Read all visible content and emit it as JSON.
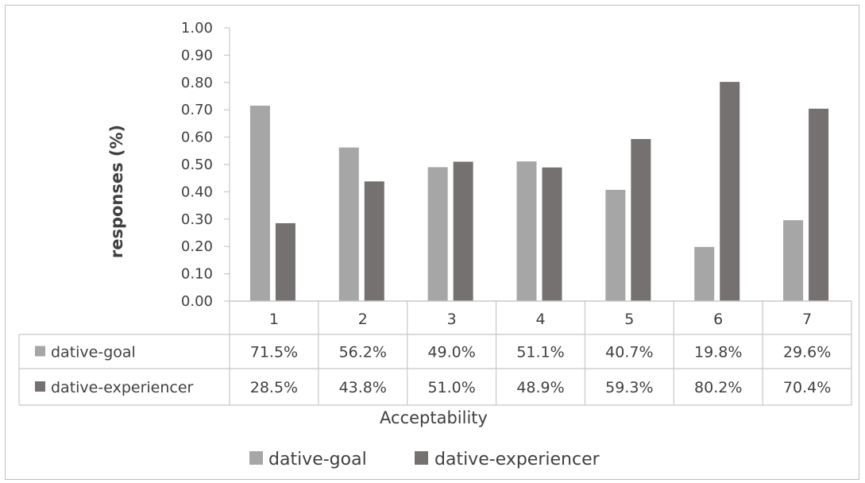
{
  "chart_data": {
    "type": "bar",
    "categories": [
      "1",
      "2",
      "3",
      "4",
      "5",
      "6",
      "7"
    ],
    "series": [
      {
        "name": "dative-goal",
        "color": "#a6a6a6",
        "values": [
          0.715,
          0.562,
          0.49,
          0.511,
          0.407,
          0.198,
          0.296
        ],
        "labels": [
          "71.5%",
          "56.2%",
          "49.0%",
          "51.1%",
          "40.7%",
          "19.8%",
          "29.6%"
        ]
      },
      {
        "name": "dative-experiencer",
        "color": "#767171",
        "values": [
          0.285,
          0.438,
          0.51,
          0.489,
          0.593,
          0.802,
          0.704
        ],
        "labels": [
          "28.5%",
          "43.8%",
          "51.0%",
          "48.9%",
          "59.3%",
          "80.2%",
          "70.4%"
        ]
      }
    ],
    "ylabel": "responses (%)",
    "xlabel": "Acceptability",
    "ylim": [
      0,
      1
    ],
    "yticks": [
      "0.00",
      "0.10",
      "0.20",
      "0.30",
      "0.40",
      "0.50",
      "0.60",
      "0.70",
      "0.80",
      "0.90",
      "1.00"
    ],
    "grid": false,
    "legend": "bottom",
    "data_table": true
  }
}
